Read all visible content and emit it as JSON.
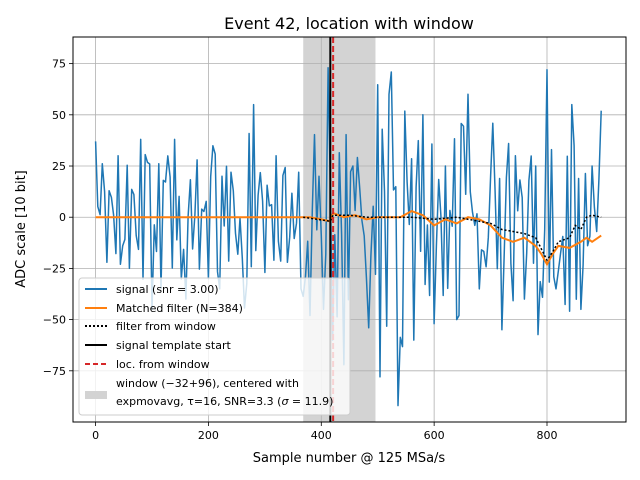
{
  "chart_data": {
    "type": "line",
    "title": "Event 42, location with window",
    "xlabel": "Sample number @ 125 MSa/s",
    "ylabel": "ADC scale [10 bit]",
    "xlim": [
      -40,
      940
    ],
    "ylim": [
      -100,
      88
    ],
    "xticks": [
      0,
      200,
      400,
      600,
      800
    ],
    "yticks": [
      -75,
      -50,
      -25,
      0,
      25,
      50,
      75
    ],
    "grid": true,
    "legend_position": "lower-left",
    "window": {
      "x0": 368,
      "x1": 496,
      "color": "#d3d3d3"
    },
    "template_start": 416,
    "location_from_window": 421,
    "signal": {
      "name": "signal (snr = 3.00)",
      "color": "#1f77b4",
      "n_samples": 896,
      "key_points": [
        [
          0,
          37
        ],
        [
          20,
          -22
        ],
        [
          40,
          30
        ],
        [
          60,
          -25
        ],
        [
          80,
          38
        ],
        [
          100,
          -45
        ],
        [
          120,
          18
        ],
        [
          140,
          38
        ],
        [
          160,
          -40
        ],
        [
          180,
          28
        ],
        [
          200,
          -30
        ],
        [
          210,
          58
        ],
        [
          220,
          -35
        ],
        [
          240,
          22
        ],
        [
          260,
          -20
        ],
        [
          280,
          55
        ],
        [
          300,
          -27
        ],
        [
          320,
          30
        ],
        [
          340,
          -22
        ],
        [
          360,
          22
        ],
        [
          380,
          -48
        ],
        [
          395,
          20
        ],
        [
          405,
          -45
        ],
        [
          413,
          73
        ],
        [
          420,
          -60
        ],
        [
          430,
          35
        ],
        [
          440,
          -72
        ],
        [
          455,
          25
        ],
        [
          470,
          -65
        ],
        [
          490,
          28
        ],
        [
          505,
          -78
        ],
        [
          520,
          60
        ],
        [
          535,
          -92
        ],
        [
          550,
          45
        ],
        [
          565,
          -60
        ],
        [
          580,
          50
        ],
        [
          600,
          -52
        ],
        [
          620,
          25
        ],
        [
          640,
          -50
        ],
        [
          660,
          60
        ],
        [
          680,
          -35
        ],
        [
          700,
          20
        ],
        [
          720,
          -55
        ],
        [
          745,
          30
        ],
        [
          760,
          -40
        ],
        [
          780,
          25
        ],
        [
          800,
          72
        ],
        [
          815,
          -35
        ],
        [
          830,
          28
        ],
        [
          845,
          55
        ],
        [
          860,
          -45
        ],
        [
          880,
          25
        ],
        [
          890,
          -56
        ],
        [
          895,
          52
        ],
        [
          896,
          37
        ]
      ]
    },
    "matched_filter": {
      "name": "Matched filter (N=384)",
      "color": "#ff7f0e",
      "points": [
        [
          0,
          0
        ],
        [
          380,
          0
        ],
        [
          400,
          -1
        ],
        [
          416,
          -2
        ],
        [
          421,
          2
        ],
        [
          440,
          0
        ],
        [
          460,
          1
        ],
        [
          480,
          -1
        ],
        [
          500,
          0
        ],
        [
          520,
          0
        ],
        [
          540,
          0
        ],
        [
          560,
          3
        ],
        [
          580,
          1
        ],
        [
          600,
          -4
        ],
        [
          620,
          -1
        ],
        [
          640,
          -3
        ],
        [
          660,
          0
        ],
        [
          680,
          -1
        ],
        [
          700,
          -4
        ],
        [
          720,
          -10
        ],
        [
          740,
          -12
        ],
        [
          760,
          -10
        ],
        [
          780,
          -14
        ],
        [
          790,
          -18
        ],
        [
          800,
          -23
        ],
        [
          810,
          -18
        ],
        [
          820,
          -14
        ],
        [
          840,
          -15
        ],
        [
          860,
          -12
        ],
        [
          870,
          -10
        ],
        [
          880,
          -12
        ],
        [
          896,
          -9
        ]
      ]
    },
    "filter_from_window": {
      "name": "filter from window",
      "color": "#000000",
      "points": [
        [
          368,
          0
        ],
        [
          416,
          -2
        ],
        [
          421,
          1
        ],
        [
          450,
          1
        ],
        [
          480,
          0
        ],
        [
          500,
          0
        ],
        [
          560,
          0
        ],
        [
          600,
          -1
        ],
        [
          640,
          0
        ],
        [
          680,
          -2
        ],
        [
          700,
          -3
        ],
        [
          720,
          -6
        ],
        [
          740,
          -7
        ],
        [
          760,
          -8
        ],
        [
          780,
          -10
        ],
        [
          800,
          -21
        ],
        [
          810,
          -17
        ],
        [
          820,
          -12
        ],
        [
          840,
          -10
        ],
        [
          850,
          -4
        ],
        [
          860,
          -6
        ],
        [
          870,
          0
        ],
        [
          880,
          1
        ],
        [
          896,
          0
        ]
      ]
    },
    "legend": [
      "signal (snr = 3.00)",
      "Matched filter (N=384)",
      "filter from window",
      "signal template start",
      "loc. from window"
    ],
    "legend_window_line1": "window (−32+96), centered with",
    "legend_window_line2_a": "expmovavg, τ=16, SNR=3.3 (",
    "legend_window_line2_sigma": "σ",
    "legend_window_line2_b": " = 11.9)"
  }
}
